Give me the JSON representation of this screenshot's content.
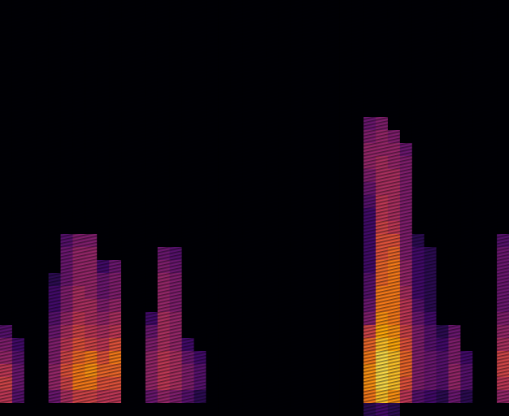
{
  "chart_data": {
    "type": "heatmap",
    "tick_labels": false,
    "zlim": [
      0,
      1
    ],
    "cells": [
      [
        0,
        0,
        0,
        0,
        0,
        0,
        0,
        0,
        0,
        0,
        0,
        0,
        0,
        0,
        0,
        0,
        0,
        0,
        0,
        0,
        0,
        0,
        0,
        0,
        0,
        0,
        0,
        0,
        0,
        0,
        0,
        0,
        0,
        0,
        0,
        0,
        0,
        0,
        0,
        0,
        0,
        0
      ],
      [
        0,
        0,
        0,
        0,
        0,
        0,
        0,
        0,
        0,
        0,
        0,
        0,
        0,
        0,
        0,
        0,
        0,
        0,
        0,
        0,
        0,
        0,
        0,
        0,
        0,
        0,
        0,
        0,
        0,
        0,
        0,
        0,
        0,
        0,
        0,
        0,
        0,
        0,
        0,
        0,
        0,
        0
      ],
      [
        0,
        0,
        0,
        0,
        0,
        0,
        0,
        0,
        0,
        0,
        0,
        0,
        0,
        0,
        0,
        0,
        0,
        0,
        0,
        0,
        0,
        0,
        0,
        0,
        0,
        0,
        0,
        0,
        0,
        0,
        0,
        0,
        0,
        0,
        0,
        0,
        0,
        0,
        0,
        0,
        0,
        0
      ],
      [
        0,
        0,
        0,
        0,
        0,
        0,
        0,
        0,
        0,
        0,
        0,
        0,
        0,
        0,
        0,
        0,
        0,
        0,
        0,
        0,
        0,
        0,
        0,
        0,
        0,
        0,
        0,
        0,
        0,
        0,
        0,
        0,
        0,
        0,
        0,
        0,
        0,
        0,
        0,
        0,
        0,
        0
      ],
      [
        0,
        0,
        0,
        0,
        0,
        0,
        0,
        0,
        0,
        0,
        0,
        0,
        0,
        0,
        0,
        0,
        0,
        0,
        0,
        0,
        0,
        0,
        0,
        0,
        0,
        0,
        0,
        0,
        0,
        0,
        0,
        0,
        0,
        0,
        0,
        0,
        0,
        0,
        0,
        0,
        0,
        0
      ],
      [
        0,
        0,
        0,
        0,
        0,
        0,
        0,
        0,
        0,
        0,
        0,
        0,
        0,
        0,
        0,
        0,
        0,
        0,
        0,
        0,
        0,
        0,
        0,
        0,
        0,
        0,
        0,
        0,
        0,
        0,
        0,
        0,
        0,
        0,
        0,
        0,
        0,
        0,
        0,
        0,
        0,
        0
      ],
      [
        0,
        0,
        0,
        0,
        0,
        0,
        0,
        0,
        0,
        0,
        0,
        0,
        0,
        0,
        0,
        0,
        0,
        0,
        0,
        0,
        0,
        0,
        0,
        0,
        0,
        0,
        0,
        0,
        0,
        0,
        0,
        0,
        0,
        0,
        0,
        0,
        0,
        0,
        0,
        0,
        0,
        0
      ],
      [
        0,
        0,
        0,
        0,
        0,
        0,
        0,
        0,
        0,
        0,
        0,
        0,
        0,
        0,
        0,
        0,
        0,
        0,
        0,
        0,
        0,
        0,
        0,
        0,
        0,
        0,
        0,
        0,
        0,
        0,
        0,
        0,
        0,
        0,
        0,
        0,
        0,
        0,
        0,
        0,
        0,
        0
      ],
      [
        0,
        0,
        0,
        0,
        0,
        0,
        0,
        0,
        0,
        0,
        0,
        0,
        0,
        0,
        0,
        0,
        0,
        0,
        0,
        0,
        0,
        0,
        0,
        0,
        0,
        0,
        0,
        0,
        0,
        0,
        0,
        0,
        0,
        0,
        0,
        0,
        0,
        0,
        0,
        0,
        0,
        0
      ],
      [
        0,
        0,
        0,
        0,
        0,
        0,
        0,
        0,
        0,
        0,
        0,
        0,
        0,
        0,
        0,
        0,
        0,
        0,
        0,
        0,
        0,
        0,
        0,
        0,
        0,
        0,
        0,
        0,
        0,
        0,
        0.3,
        0.35,
        0,
        0,
        0,
        0,
        0,
        0,
        0,
        0,
        0,
        0
      ],
      [
        0,
        0,
        0,
        0,
        0,
        0,
        0,
        0,
        0,
        0,
        0,
        0,
        0,
        0,
        0,
        0,
        0,
        0,
        0,
        0,
        0,
        0,
        0,
        0,
        0,
        0,
        0,
        0,
        0,
        0,
        0.35,
        0.4,
        0.35,
        0,
        0,
        0,
        0,
        0,
        0,
        0,
        0,
        0
      ],
      [
        0,
        0,
        0,
        0,
        0,
        0,
        0,
        0,
        0,
        0,
        0,
        0,
        0,
        0,
        0,
        0,
        0,
        0,
        0,
        0,
        0,
        0,
        0,
        0,
        0,
        0,
        0,
        0,
        0,
        0,
        0.4,
        0.4,
        0.4,
        0.3,
        0,
        0,
        0,
        0,
        0,
        0,
        0,
        0
      ],
      [
        0,
        0,
        0,
        0,
        0,
        0,
        0,
        0,
        0,
        0,
        0,
        0,
        0,
        0,
        0,
        0,
        0,
        0,
        0,
        0,
        0,
        0,
        0,
        0,
        0,
        0,
        0,
        0,
        0,
        0,
        0.4,
        0.45,
        0.4,
        0.35,
        0,
        0,
        0,
        0,
        0,
        0,
        0,
        0
      ],
      [
        0,
        0,
        0,
        0,
        0,
        0,
        0,
        0,
        0,
        0,
        0,
        0,
        0,
        0,
        0,
        0,
        0,
        0,
        0,
        0,
        0,
        0,
        0,
        0,
        0,
        0,
        0,
        0,
        0,
        0,
        0.35,
        0.45,
        0.45,
        0.35,
        0,
        0,
        0,
        0,
        0,
        0,
        0,
        0
      ],
      [
        0,
        0,
        0,
        0,
        0,
        0,
        0,
        0,
        0,
        0,
        0,
        0,
        0,
        0,
        0,
        0,
        0,
        0,
        0,
        0,
        0,
        0,
        0,
        0,
        0,
        0,
        0,
        0,
        0,
        0,
        0.3,
        0.45,
        0.45,
        0.35,
        0,
        0,
        0,
        0,
        0,
        0,
        0,
        0
      ],
      [
        0,
        0,
        0,
        0,
        0,
        0,
        0,
        0,
        0,
        0,
        0,
        0,
        0,
        0,
        0,
        0,
        0,
        0,
        0,
        0,
        0,
        0,
        0,
        0,
        0,
        0,
        0,
        0,
        0,
        0,
        0.25,
        0.5,
        0.45,
        0.35,
        0,
        0,
        0,
        0,
        0,
        0,
        0,
        0
      ],
      [
        0,
        0,
        0,
        0,
        0,
        0,
        0,
        0,
        0,
        0,
        0,
        0,
        0,
        0,
        0,
        0,
        0,
        0,
        0,
        0,
        0,
        0,
        0,
        0,
        0,
        0,
        0,
        0,
        0,
        0,
        0.2,
        0.5,
        0.45,
        0.35,
        0,
        0,
        0,
        0,
        0,
        0,
        0,
        0
      ],
      [
        0,
        0,
        0,
        0,
        0,
        0,
        0,
        0,
        0,
        0,
        0,
        0,
        0,
        0,
        0,
        0,
        0,
        0,
        0,
        0,
        0,
        0,
        0,
        0,
        0,
        0,
        0,
        0,
        0,
        0,
        0.2,
        0.55,
        0.5,
        0.35,
        0,
        0,
        0,
        0,
        0,
        0,
        0,
        0
      ],
      [
        0,
        0,
        0,
        0,
        0,
        0.25,
        0.35,
        0.35,
        0,
        0,
        0,
        0,
        0,
        0,
        0,
        0,
        0,
        0,
        0,
        0,
        0,
        0,
        0,
        0,
        0,
        0,
        0,
        0,
        0,
        0,
        0.2,
        0.6,
        0.6,
        0.35,
        0.15,
        0,
        0,
        0,
        0,
        0,
        0,
        0.25
      ],
      [
        0,
        0,
        0,
        0,
        0,
        0.3,
        0.4,
        0.4,
        0,
        0,
        0,
        0,
        0,
        0.3,
        0.25,
        0,
        0,
        0,
        0,
        0,
        0,
        0,
        0,
        0,
        0,
        0,
        0,
        0,
        0,
        0,
        0.2,
        0.6,
        0.65,
        0.35,
        0.2,
        0.15,
        0,
        0,
        0,
        0,
        0,
        0.3
      ],
      [
        0,
        0,
        0,
        0,
        0,
        0.3,
        0.4,
        0.4,
        0.2,
        0.3,
        0,
        0,
        0,
        0.35,
        0.3,
        0,
        0,
        0,
        0,
        0,
        0,
        0,
        0,
        0,
        0,
        0,
        0,
        0,
        0,
        0,
        0.2,
        0.65,
        0.7,
        0.4,
        0.2,
        0.15,
        0,
        0,
        0,
        0,
        0,
        0.3
      ],
      [
        0,
        0,
        0,
        0,
        0.15,
        0.3,
        0.4,
        0.4,
        0.3,
        0.35,
        0,
        0,
        0,
        0.4,
        0.35,
        0,
        0,
        0,
        0,
        0,
        0,
        0,
        0,
        0,
        0,
        0,
        0,
        0,
        0,
        0,
        0.25,
        0.65,
        0.7,
        0.4,
        0.2,
        0.15,
        0,
        0,
        0,
        0,
        0,
        0.3
      ],
      [
        0,
        0,
        0,
        0,
        0.2,
        0.35,
        0.45,
        0.4,
        0.3,
        0.35,
        0,
        0,
        0,
        0.4,
        0.35,
        0,
        0,
        0,
        0,
        0,
        0,
        0,
        0,
        0,
        0,
        0,
        0,
        0,
        0,
        0,
        0.25,
        0.7,
        0.7,
        0.45,
        0.2,
        0.15,
        0,
        0,
        0,
        0,
        0,
        0.3
      ],
      [
        0,
        0,
        0,
        0,
        0.2,
        0.35,
        0.45,
        0.45,
        0.35,
        0.4,
        0,
        0,
        0,
        0.4,
        0.35,
        0,
        0,
        0,
        0,
        0,
        0,
        0,
        0,
        0,
        0,
        0,
        0,
        0,
        0,
        0,
        0.3,
        0.7,
        0.7,
        0.5,
        0.25,
        0.15,
        0,
        0,
        0,
        0,
        0,
        0.3
      ],
      [
        0,
        0,
        0,
        0,
        0.25,
        0.4,
        0.5,
        0.45,
        0.4,
        0.45,
        0,
        0,
        0.2,
        0.45,
        0.4,
        0,
        0,
        0,
        0,
        0,
        0,
        0,
        0,
        0,
        0,
        0,
        0,
        0,
        0,
        0,
        0.35,
        0.75,
        0.7,
        0.5,
        0.3,
        0.2,
        0,
        0,
        0,
        0,
        0,
        0.35
      ],
      [
        0.25,
        0,
        0,
        0,
        0.3,
        0.45,
        0.55,
        0.5,
        0.45,
        0.5,
        0,
        0,
        0.3,
        0.45,
        0.4,
        0,
        0,
        0,
        0,
        0,
        0,
        0,
        0,
        0,
        0,
        0,
        0,
        0,
        0,
        0,
        0.55,
        0.8,
        0.75,
        0.55,
        0.35,
        0.25,
        0.15,
        0.3,
        0,
        0,
        0,
        0.4
      ],
      [
        0.35,
        0.2,
        0,
        0,
        0.35,
        0.5,
        0.6,
        0.55,
        0.5,
        0.6,
        0,
        0,
        0.35,
        0.45,
        0.4,
        0.2,
        0,
        0,
        0,
        0,
        0,
        0,
        0,
        0,
        0,
        0,
        0,
        0,
        0,
        0,
        0.65,
        0.85,
        0.8,
        0.6,
        0.35,
        0.25,
        0.2,
        0.35,
        0,
        0,
        0,
        0.45
      ],
      [
        0.4,
        0.25,
        0,
        0,
        0.35,
        0.55,
        0.65,
        0.7,
        0.6,
        0.7,
        0,
        0,
        0.4,
        0.5,
        0.45,
        0.3,
        0.2,
        0,
        0,
        0,
        0,
        0,
        0,
        0,
        0,
        0,
        0,
        0,
        0,
        0,
        0.7,
        0.9,
        0.85,
        0.65,
        0.35,
        0.3,
        0.25,
        0.35,
        0.2,
        0,
        0,
        0.55
      ],
      [
        0.5,
        0.3,
        0,
        0,
        0.4,
        0.6,
        0.7,
        0.75,
        0.65,
        0.65,
        0,
        0,
        0.4,
        0.5,
        0.45,
        0.35,
        0.25,
        0,
        0,
        0,
        0,
        0,
        0,
        0,
        0,
        0,
        0,
        0,
        0,
        0,
        0.75,
        0.9,
        0.85,
        0.65,
        0.35,
        0.3,
        0.25,
        0.4,
        0.25,
        0,
        0,
        0.55
      ],
      [
        0.55,
        0.3,
        0,
        0,
        0.4,
        0.55,
        0.7,
        0.7,
        0.6,
        0.6,
        0,
        0,
        0.4,
        0.5,
        0.45,
        0.35,
        0.25,
        0,
        0,
        0,
        0,
        0,
        0,
        0,
        0,
        0,
        0,
        0,
        0,
        0,
        0.75,
        0.9,
        0.85,
        0.6,
        0.35,
        0.3,
        0.25,
        0.4,
        0.25,
        0,
        0,
        0.5
      ],
      [
        0.5,
        0.25,
        0,
        0,
        0.3,
        0.45,
        0.55,
        0.55,
        0.5,
        0.5,
        0,
        0,
        0.3,
        0.4,
        0.35,
        0.25,
        0.15,
        0,
        0,
        0,
        0,
        0,
        0,
        0,
        0,
        0,
        0,
        0,
        0,
        0,
        0.7,
        0.85,
        0.75,
        0.5,
        0.25,
        0.2,
        0.15,
        0.3,
        0.15,
        0,
        0,
        0.4
      ],
      [
        0,
        0,
        0,
        0,
        0,
        0,
        0,
        0,
        0,
        0,
        0,
        0,
        0,
        0,
        0,
        0,
        0,
        0,
        0,
        0,
        0,
        0,
        0,
        0,
        0,
        0,
        0,
        0,
        0,
        0,
        0.15,
        0.2,
        0.15,
        0,
        0,
        0,
        0,
        0,
        0,
        0,
        0,
        0
      ]
    ]
  }
}
